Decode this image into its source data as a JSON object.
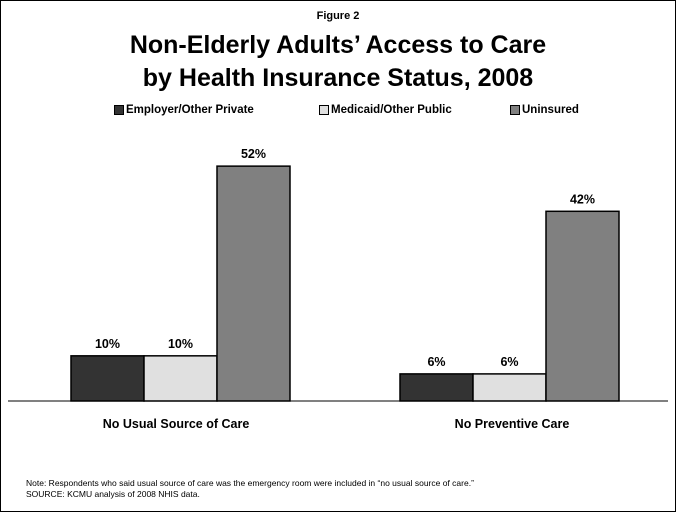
{
  "figure_label": "Figure 2",
  "title_line1": "Non-Elderly Adults’ Access to Care",
  "title_line2": "by Health Insurance Status, 2008",
  "legend": [
    {
      "label": "Employer/Other Private",
      "color": "#333333"
    },
    {
      "label": "Medicaid/Other Public",
      "color": "#e0e0e0"
    },
    {
      "label": "Uninsured",
      "color": "#808080"
    }
  ],
  "chart_data": {
    "type": "bar",
    "categories": [
      "No Usual Source of Care",
      "No Preventive Care"
    ],
    "series": [
      {
        "name": "Employer/Other Private",
        "values": [
          10,
          6
        ],
        "labels": [
          "10%",
          "6%"
        ],
        "color": "#333333"
      },
      {
        "name": "Medicaid/Other Public",
        "values": [
          10,
          6
        ],
        "labels": [
          "10%",
          "6%"
        ],
        "color": "#e0e0e0"
      },
      {
        "name": "Uninsured",
        "values": [
          52,
          42
        ],
        "labels": [
          "52%",
          "42%"
        ],
        "color": "#808080"
      }
    ],
    "ylim": [
      0,
      60
    ],
    "grid": false,
    "legend_position": "top"
  },
  "note_line1": "Note: Respondents who said usual source of care was the emergency room were included in “no usual source of care.”",
  "note_line2": "SOURCE: KCMU analysis of 2008 NHIS data."
}
